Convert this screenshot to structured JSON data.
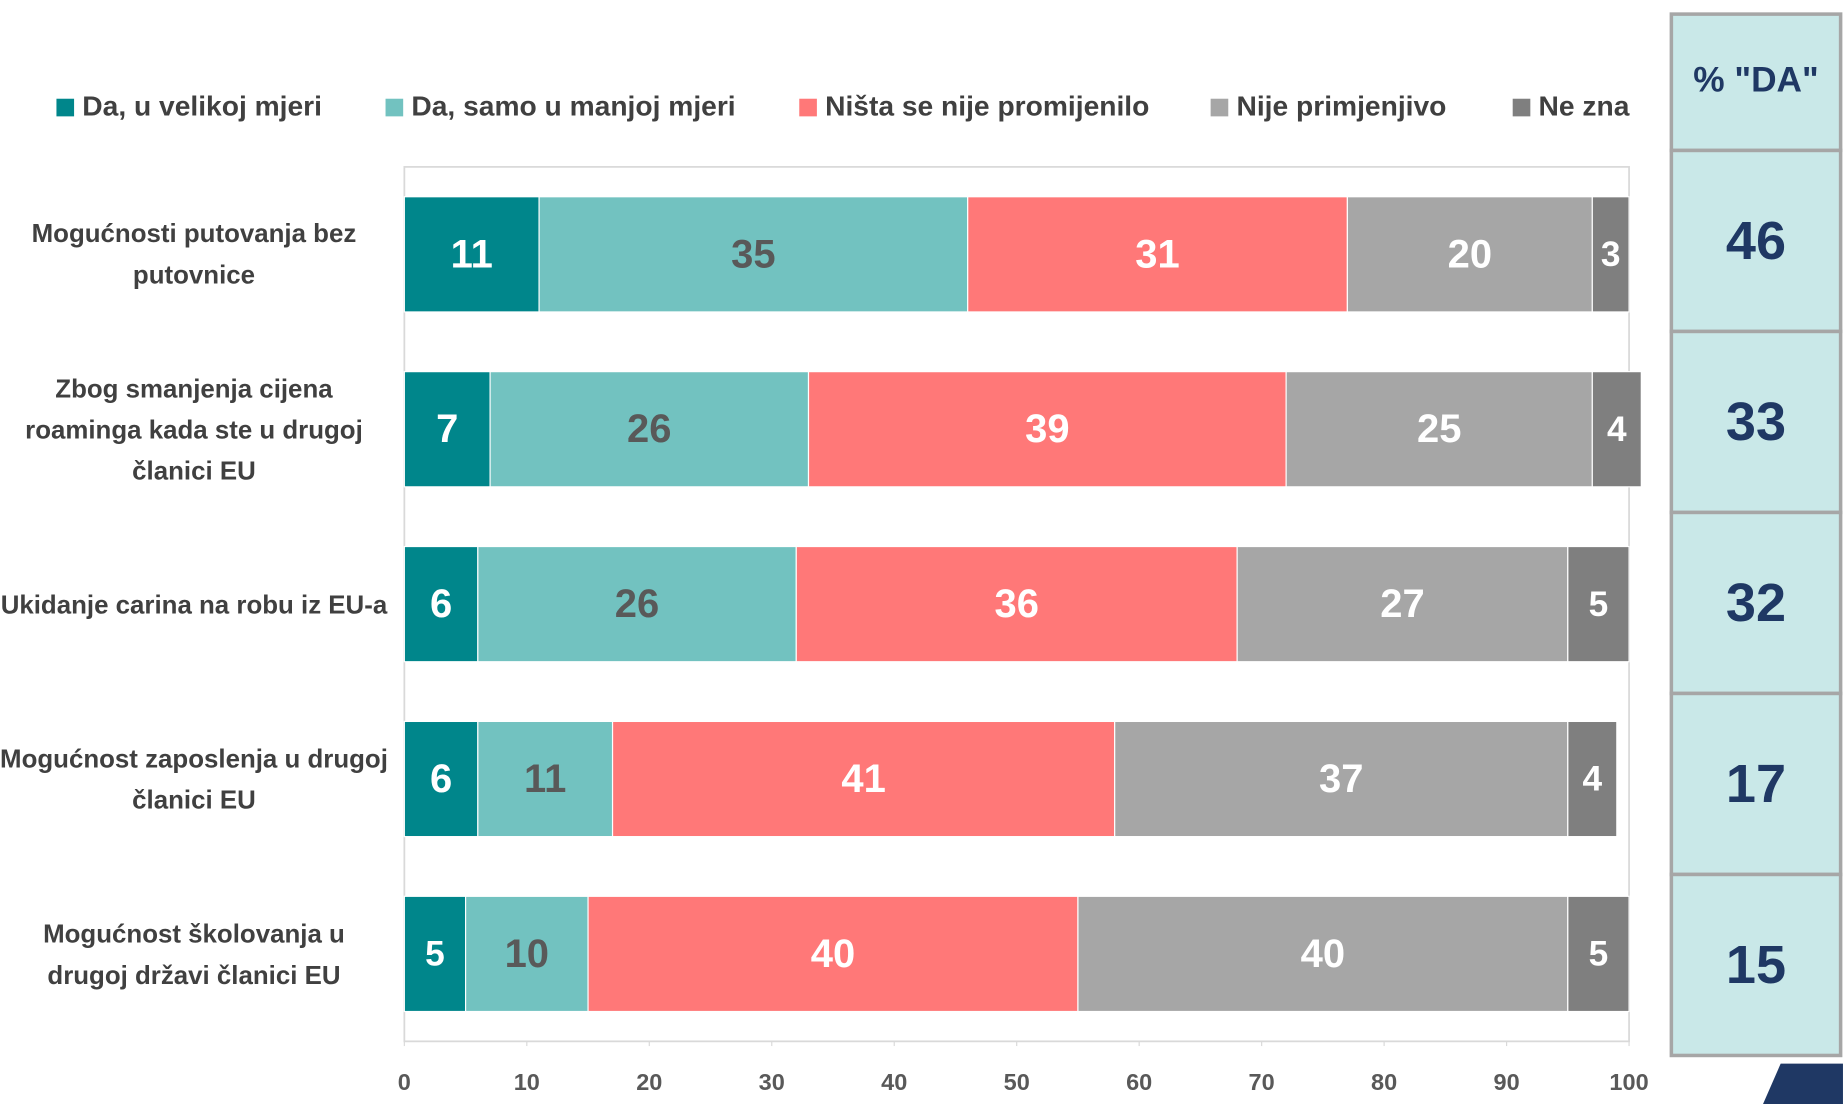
{
  "chart_data": {
    "type": "stacked-bar-horizontal",
    "categories": [
      "Mogućnosti putovanja bez putovnice",
      "Zbog smanjenja cijena roaminga kada ste u drugoj članici EU",
      "Ukidanje carina na robu iz EU-a",
      "Mogućnost zaposlenja u drugoj članici EU",
      "Mogućnost školovanja u drugoj državi članici EU"
    ],
    "series": [
      {
        "name": "Da, u velikoj mjeri",
        "color": "#00868b",
        "label_color": "#ffffff",
        "values": [
          11,
          7,
          6,
          6,
          5
        ]
      },
      {
        "name": "Da, samo u manjoj mjeri",
        "color": "#72c2c0",
        "label_color": "#595959",
        "values": [
          35,
          26,
          26,
          11,
          10
        ]
      },
      {
        "name": "Ništa se nije promijenilo",
        "color": "#ff7878",
        "label_color": "#ffffff",
        "values": [
          31,
          39,
          36,
          41,
          40
        ]
      },
      {
        "name": "Nije primjenjivo",
        "color": "#a6a6a6",
        "label_color": "#ffffff",
        "values": [
          20,
          25,
          27,
          37,
          40
        ]
      },
      {
        "name": "Ne zna",
        "color": "#7f7f7f",
        "label_color": "#ffffff",
        "values": [
          3,
          4,
          5,
          4,
          5
        ]
      }
    ],
    "xlim": [
      0,
      100
    ],
    "xticks": [
      0,
      10,
      20,
      30,
      40,
      50,
      60,
      70,
      80,
      90,
      100
    ],
    "legend": "top",
    "da_column": {
      "title": "% \"DA\"",
      "values": [
        46,
        33,
        32,
        17,
        15
      ]
    }
  }
}
